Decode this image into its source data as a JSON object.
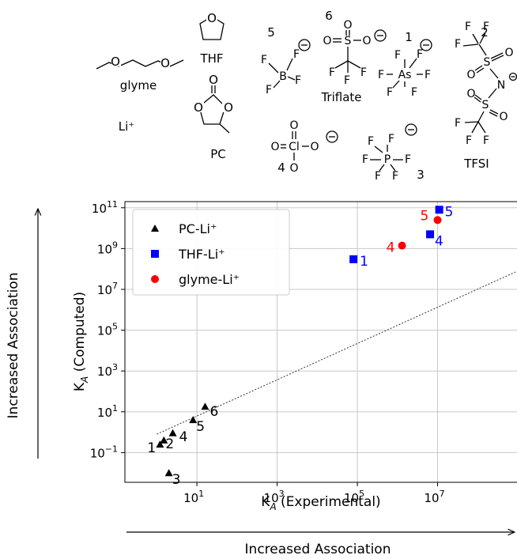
{
  "structures": {
    "glyme": "glyme",
    "thf": "THF",
    "pc": "PC",
    "li": "Li⁺",
    "triflate": "Triflate",
    "tfsi": "TFSI",
    "num_bf4": "5",
    "num_triflate": "6",
    "num_asf6": "1",
    "num_tfsi": "2",
    "num_clo4": "4",
    "num_pf6": "3"
  },
  "annotations": {
    "left_arrow_label": "Increased Association",
    "bottom_arrow_label": "Increased Association"
  },
  "chart_data": {
    "type": "scatter",
    "xlabel": "K_A (Experimental)",
    "ylabel": "K_A (Computed)",
    "xscale": "log",
    "yscale": "log",
    "xlim": [
      0.16,
      1000000000.0
    ],
    "ylim": [
      0.0035,
      200000000000.0
    ],
    "xticks": [
      {
        "v": 10,
        "label": "10",
        "exp": "1"
      },
      {
        "v": 1000,
        "label": "10",
        "exp": "3"
      },
      {
        "v": 100000,
        "label": "10",
        "exp": "5"
      },
      {
        "v": 10000000,
        "label": "10",
        "exp": "7"
      }
    ],
    "yticks": [
      {
        "v": 0.1,
        "label": "10",
        "exp": "−1"
      },
      {
        "v": 10,
        "label": "10",
        "exp": "1"
      },
      {
        "v": 1000,
        "label": "10",
        "exp": "3"
      },
      {
        "v": 100000,
        "label": "10",
        "exp": "5"
      },
      {
        "v": 10000000,
        "label": "10",
        "exp": "7"
      },
      {
        "v": 1000000000,
        "label": "10",
        "exp": "9"
      },
      {
        "v": 100000000000,
        "label": "10",
        "exp": "11"
      }
    ],
    "grid": true,
    "legend_placement": "top-left",
    "reference_line": {
      "x": [
        1,
        1000000000.0
      ],
      "y": [
        0.8,
        80000000.0
      ],
      "style": "dotted"
    },
    "series": [
      {
        "name": "PC-Li⁺",
        "marker": "triangle",
        "color": "#000000",
        "points": [
          {
            "x": 1.2,
            "y": 0.25,
            "label": "1"
          },
          {
            "x": 1.5,
            "y": 0.4,
            "label": "2"
          },
          {
            "x": 2.0,
            "y": 0.01,
            "label": "3"
          },
          {
            "x": 2.5,
            "y": 0.9,
            "label": "4"
          },
          {
            "x": 8.0,
            "y": 4.0,
            "label": "5"
          },
          {
            "x": 16.0,
            "y": 18.0,
            "label": "6"
          }
        ]
      },
      {
        "name": "THF-Li⁺",
        "marker": "square",
        "color": "#0000ff",
        "points": [
          {
            "x": 80000,
            "y": 300000000,
            "label": "1"
          },
          {
            "x": 6500000,
            "y": 5000000000,
            "label": "4"
          },
          {
            "x": 11000000,
            "y": 80000000000,
            "label": "5"
          }
        ]
      },
      {
        "name": "glyme-Li⁺",
        "marker": "circle",
        "color": "#ff0000",
        "points": [
          {
            "x": 1300000,
            "y": 1400000000,
            "label": "4"
          },
          {
            "x": 10000000,
            "y": 25000000000,
            "label": "5"
          }
        ]
      }
    ]
  }
}
